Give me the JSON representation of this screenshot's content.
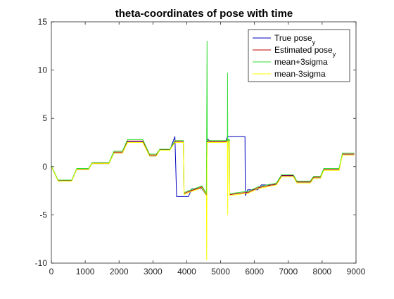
{
  "chart_data": {
    "type": "line",
    "title": "theta-coordinates of pose with time",
    "xlabel": "",
    "ylabel": "",
    "xlim": [
      0,
      9000
    ],
    "ylim": [
      -10,
      15
    ],
    "xticks": [
      0,
      1000,
      2000,
      3000,
      4000,
      5000,
      6000,
      7000,
      8000,
      9000
    ],
    "yticks": [
      -10,
      -5,
      0,
      5,
      10,
      15
    ],
    "grid": false,
    "legend_position": "top-right",
    "legend": [
      {
        "label": "True pose",
        "sub": "y",
        "color": "#0000bf"
      },
      {
        "label": "Estimated pose",
        "sub": "y",
        "color": "#bf0000"
      },
      {
        "label": "mean+3sigma",
        "sub": "",
        "color": "#33dd33"
      },
      {
        "label": "mean-3sigma",
        "sub": "",
        "color": "#ffff00"
      }
    ],
    "series": [
      {
        "name": "True pose",
        "color": "#0000bf",
        "points": [
          [
            0,
            0
          ],
          [
            200,
            -1.5
          ],
          [
            600,
            -1.5
          ],
          [
            750,
            -0.3
          ],
          [
            1100,
            -0.3
          ],
          [
            1200,
            0.3
          ],
          [
            1700,
            0.3
          ],
          [
            1850,
            1.4
          ],
          [
            2100,
            1.4
          ],
          [
            2250,
            2.6
          ],
          [
            2700,
            2.6
          ],
          [
            2900,
            1.1
          ],
          [
            3100,
            1.1
          ],
          [
            3200,
            1.7
          ],
          [
            3500,
            1.7
          ],
          [
            3650,
            3.1
          ],
          [
            3700,
            -3.1
          ],
          [
            4050,
            -3.1
          ],
          [
            4150,
            -2.3
          ],
          [
            4450,
            -2.3
          ],
          [
            4580,
            -3.0
          ],
          [
            4600,
            2.9
          ],
          [
            4700,
            2.6
          ],
          [
            5150,
            2.6
          ],
          [
            5200,
            3.1
          ],
          [
            5720,
            3.1
          ],
          [
            5730,
            -3.0
          ],
          [
            5800,
            -2.4
          ],
          [
            6100,
            -2.4
          ],
          [
            6200,
            -1.9
          ],
          [
            6650,
            -1.9
          ],
          [
            6800,
            -0.9
          ],
          [
            7150,
            -0.9
          ],
          [
            7250,
            -1.6
          ],
          [
            7650,
            -1.6
          ],
          [
            7750,
            -1.2
          ],
          [
            7950,
            -1.2
          ],
          [
            8050,
            -0.2
          ],
          [
            8500,
            -0.2
          ],
          [
            8600,
            1.2
          ],
          [
            8950,
            1.2
          ]
        ]
      },
      {
        "name": "Estimated pose",
        "color": "#bf0000",
        "points": [
          [
            0,
            0.05
          ],
          [
            200,
            -1.45
          ],
          [
            600,
            -1.45
          ],
          [
            750,
            -0.25
          ],
          [
            1100,
            -0.25
          ],
          [
            1200,
            0.35
          ],
          [
            1700,
            0.35
          ],
          [
            1850,
            1.5
          ],
          [
            2100,
            1.5
          ],
          [
            2250,
            2.65
          ],
          [
            2700,
            2.65
          ],
          [
            2900,
            1.2
          ],
          [
            3100,
            1.2
          ],
          [
            3200,
            1.75
          ],
          [
            3500,
            1.75
          ],
          [
            3650,
            2.6
          ],
          [
            3900,
            2.6
          ],
          [
            3920,
            -2.8
          ],
          [
            4050,
            -2.6
          ],
          [
            4450,
            -2.1
          ],
          [
            4580,
            -2.9
          ],
          [
            4600,
            2.6
          ],
          [
            5150,
            2.6
          ],
          [
            5200,
            2.7
          ],
          [
            5260,
            2.7
          ],
          [
            5270,
            -2.9
          ],
          [
            5700,
            -2.7
          ],
          [
            5800,
            -2.7
          ],
          [
            6100,
            -2.2
          ],
          [
            6650,
            -1.8
          ],
          [
            6800,
            -0.95
          ],
          [
            7150,
            -0.95
          ],
          [
            7250,
            -1.6
          ],
          [
            7650,
            -1.6
          ],
          [
            7750,
            -1.1
          ],
          [
            7950,
            -1.1
          ],
          [
            8050,
            -0.3
          ],
          [
            8500,
            -0.3
          ],
          [
            8600,
            1.3
          ],
          [
            8950,
            1.3
          ]
        ]
      },
      {
        "name": "mean+3sigma",
        "color": "#33dd33",
        "points": [
          [
            0,
            0.1
          ],
          [
            200,
            -1.4
          ],
          [
            600,
            -1.4
          ],
          [
            750,
            -0.2
          ],
          [
            1100,
            -0.2
          ],
          [
            1200,
            0.4
          ],
          [
            1700,
            0.4
          ],
          [
            1850,
            1.6
          ],
          [
            2100,
            1.6
          ],
          [
            2250,
            2.8
          ],
          [
            2700,
            2.8
          ],
          [
            2900,
            1.3
          ],
          [
            3100,
            1.3
          ],
          [
            3200,
            1.8
          ],
          [
            3500,
            1.8
          ],
          [
            3650,
            2.7
          ],
          [
            3900,
            2.7
          ],
          [
            3920,
            -2.7
          ],
          [
            4050,
            -2.5
          ],
          [
            4450,
            -2.0
          ],
          [
            4580,
            -2.8
          ],
          [
            4600,
            13.0
          ],
          [
            4605,
            2.7
          ],
          [
            5150,
            2.7
          ],
          [
            5200,
            2.8
          ],
          [
            5205,
            9.7
          ],
          [
            5212,
            1.0
          ],
          [
            5230,
            2.8
          ],
          [
            5260,
            2.8
          ],
          [
            5270,
            -2.8
          ],
          [
            5700,
            -2.6
          ],
          [
            5800,
            -2.6
          ],
          [
            6100,
            -2.1
          ],
          [
            6650,
            -1.7
          ],
          [
            6800,
            -0.85
          ],
          [
            7150,
            -0.85
          ],
          [
            7250,
            -1.5
          ],
          [
            7650,
            -1.5
          ],
          [
            7750,
            -1.0
          ],
          [
            7950,
            -1.0
          ],
          [
            8050,
            -0.2
          ],
          [
            8500,
            -0.2
          ],
          [
            8600,
            1.4
          ],
          [
            8950,
            1.4
          ]
        ]
      },
      {
        "name": "mean-3sigma",
        "color": "#ffff00",
        "points": [
          [
            0,
            0
          ],
          [
            200,
            -1.5
          ],
          [
            600,
            -1.5
          ],
          [
            750,
            -0.3
          ],
          [
            1100,
            -0.3
          ],
          [
            1200,
            0.3
          ],
          [
            1700,
            0.3
          ],
          [
            1850,
            1.4
          ],
          [
            2100,
            1.4
          ],
          [
            2250,
            2.5
          ],
          [
            2700,
            2.5
          ],
          [
            2900,
            1.1
          ],
          [
            3100,
            1.1
          ],
          [
            3200,
            1.7
          ],
          [
            3500,
            1.7
          ],
          [
            3650,
            2.5
          ],
          [
            3900,
            2.5
          ],
          [
            3920,
            -2.9
          ],
          [
            4050,
            -2.7
          ],
          [
            4450,
            -2.2
          ],
          [
            4580,
            -3.0
          ],
          [
            4590,
            -9.7
          ],
          [
            4600,
            2.5
          ],
          [
            5150,
            2.5
          ],
          [
            5200,
            2.6
          ],
          [
            5210,
            -5.0
          ],
          [
            5220,
            2.6
          ],
          [
            5260,
            2.6
          ],
          [
            5270,
            -3.0
          ],
          [
            5700,
            -2.8
          ],
          [
            5800,
            -2.8
          ],
          [
            6100,
            -2.3
          ],
          [
            6650,
            -1.9
          ],
          [
            6800,
            -1.05
          ],
          [
            7150,
            -1.05
          ],
          [
            7250,
            -1.7
          ],
          [
            7650,
            -1.7
          ],
          [
            7750,
            -1.2
          ],
          [
            7950,
            -1.2
          ],
          [
            8050,
            -0.4
          ],
          [
            8500,
            -0.4
          ],
          [
            8600,
            1.2
          ],
          [
            8950,
            1.2
          ]
        ]
      }
    ]
  }
}
